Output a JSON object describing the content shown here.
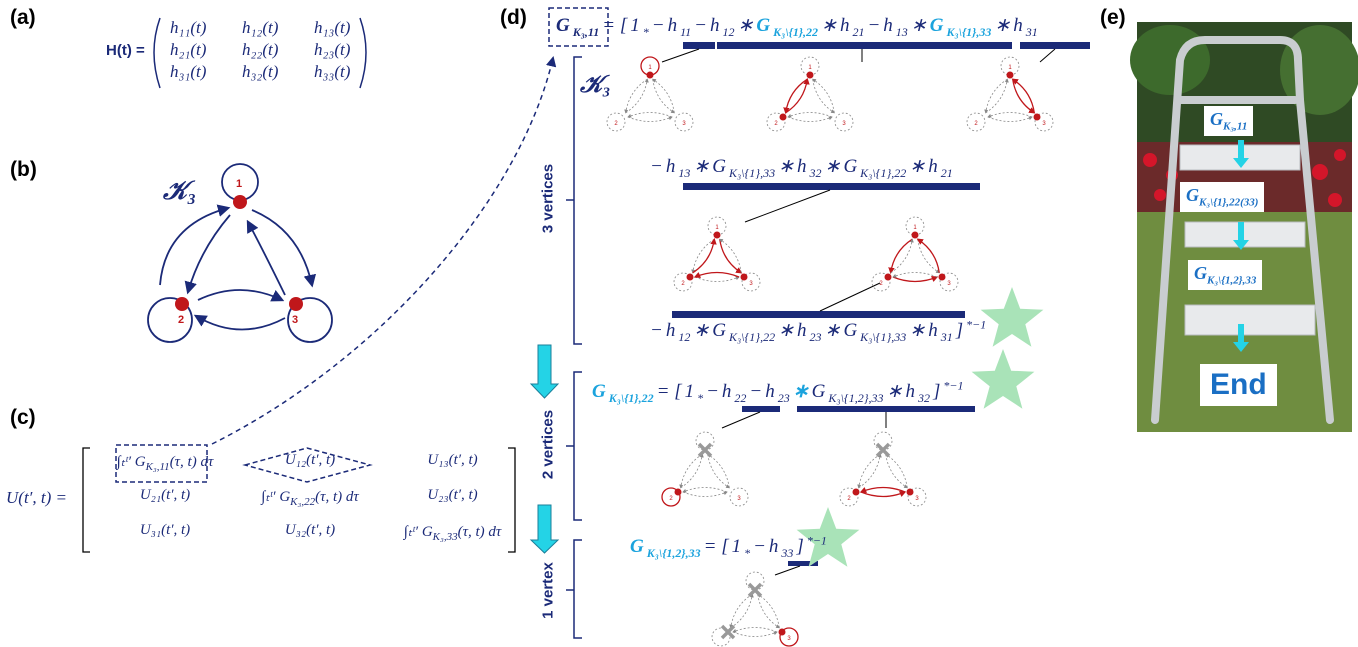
{
  "panel_labels": [
    "(a)",
    "(b)",
    "(c)",
    "(d)",
    "(e)"
  ],
  "panel_a": {
    "lhs": "H(t) =",
    "matrix": [
      [
        "h₁₁(t)",
        "h₁₂(t)",
        "h₁₃(t)"
      ],
      [
        "h₂₁(t)",
        "h₂₂(t)",
        "h₂₃(t)"
      ],
      [
        "h₃₁(t)",
        "h₃₂(t)",
        "h₃₃(t)"
      ]
    ]
  },
  "panel_b": {
    "graph_label": "𝒦₃",
    "nodes": [
      "1",
      "2",
      "3"
    ]
  },
  "panel_c": {
    "lhs": "U(t′, t) =",
    "matrix": [
      [
        {
          "text": "∫ₜᵗ′ G",
          "sub": "K₃,11",
          "after": "(τ, t) dτ"
        },
        "U₁₂(t′, t)",
        "U₁₃(t′, t)"
      ],
      [
        "U₂₁(t′, t)",
        {
          "text": "∫ₜᵗ′ G",
          "sub": "K₃,22",
          "after": "(τ, t) dτ"
        },
        "U₂₃(t′, t)"
      ],
      [
        "U₃₁(t′, t)",
        "U₃₂(t′, t)",
        {
          "text": "∫ₜᵗ′ G",
          "sub": "K₃,33",
          "after": "(τ, t) dτ"
        }
      ]
    ]
  },
  "panel_d": {
    "graph_label": "𝒦₃",
    "sections": [
      "3 vertices",
      "2 vertices",
      "1 vertex"
    ],
    "eq1": [
      {
        "text": "G",
        "sub": "K₃,11"
      },
      "= [",
      {
        "text": "1",
        "sub": "*"
      },
      "−",
      {
        "text": "h",
        "sub": "11"
      },
      "−",
      {
        "text": "h",
        "sub": "12"
      },
      "∗",
      {
        "text": "G",
        "sub": "K₃\\{1},22"
      },
      "∗",
      {
        "text": "h",
        "sub": "21"
      },
      "−",
      {
        "text": "h",
        "sub": "13"
      },
      "∗",
      {
        "text": "G",
        "sub": "K₃\\{1},33"
      },
      "∗",
      {
        "text": "h",
        "sub": "31"
      }
    ],
    "eq2": [
      "−",
      {
        "text": "h",
        "sub": "13"
      },
      "∗",
      {
        "text": "G",
        "sub": "K₃\\{1},33"
      },
      "∗",
      {
        "text": "h",
        "sub": "32"
      },
      "∗",
      {
        "text": "G",
        "sub": "K₃\\{1},22"
      },
      "∗",
      {
        "text": "h",
        "sub": "21"
      }
    ],
    "eq3": [
      "−",
      {
        "text": "h",
        "sub": "12"
      },
      "∗",
      {
        "text": "G",
        "sub": "K₃\\{1},22"
      },
      "∗",
      {
        "text": "h",
        "sub": "23"
      },
      "∗",
      {
        "text": "G",
        "sub": "K₃\\{1},33"
      },
      "∗",
      {
        "text": "h",
        "sub": "31"
      },
      {
        "text": "]",
        "sup": "*−1"
      }
    ],
    "eq4": [
      {
        "text": "G",
        "sub": "K₃\\{1},22"
      },
      "= [",
      {
        "text": "1",
        "sub": "*"
      },
      "−",
      {
        "text": "h",
        "sub": "22"
      },
      "−",
      {
        "text": "h",
        "sub": "23"
      },
      "∗",
      {
        "text": "G",
        "sub": "K₃\\{1,2},33"
      },
      "∗",
      {
        "text": "h",
        "sub": "32"
      },
      {
        "text": "]",
        "sup": "*−1"
      }
    ],
    "eq5": [
      {
        "text": "G",
        "sub": "K₃\\{1,2},33"
      },
      "= [",
      {
        "text": "1",
        "sub": "*"
      },
      "−",
      {
        "text": "h",
        "sub": "33"
      },
      {
        "text": "]",
        "sup": "*−1"
      }
    ]
  },
  "panel_e": {
    "steps": [
      {
        "text": "G",
        "sub": "K₃,11"
      },
      {
        "text": "G",
        "sub": "K₃\\{1},22(33)"
      },
      {
        "text": "G",
        "sub": "K₃\\{1,2},33"
      },
      "End"
    ]
  }
}
